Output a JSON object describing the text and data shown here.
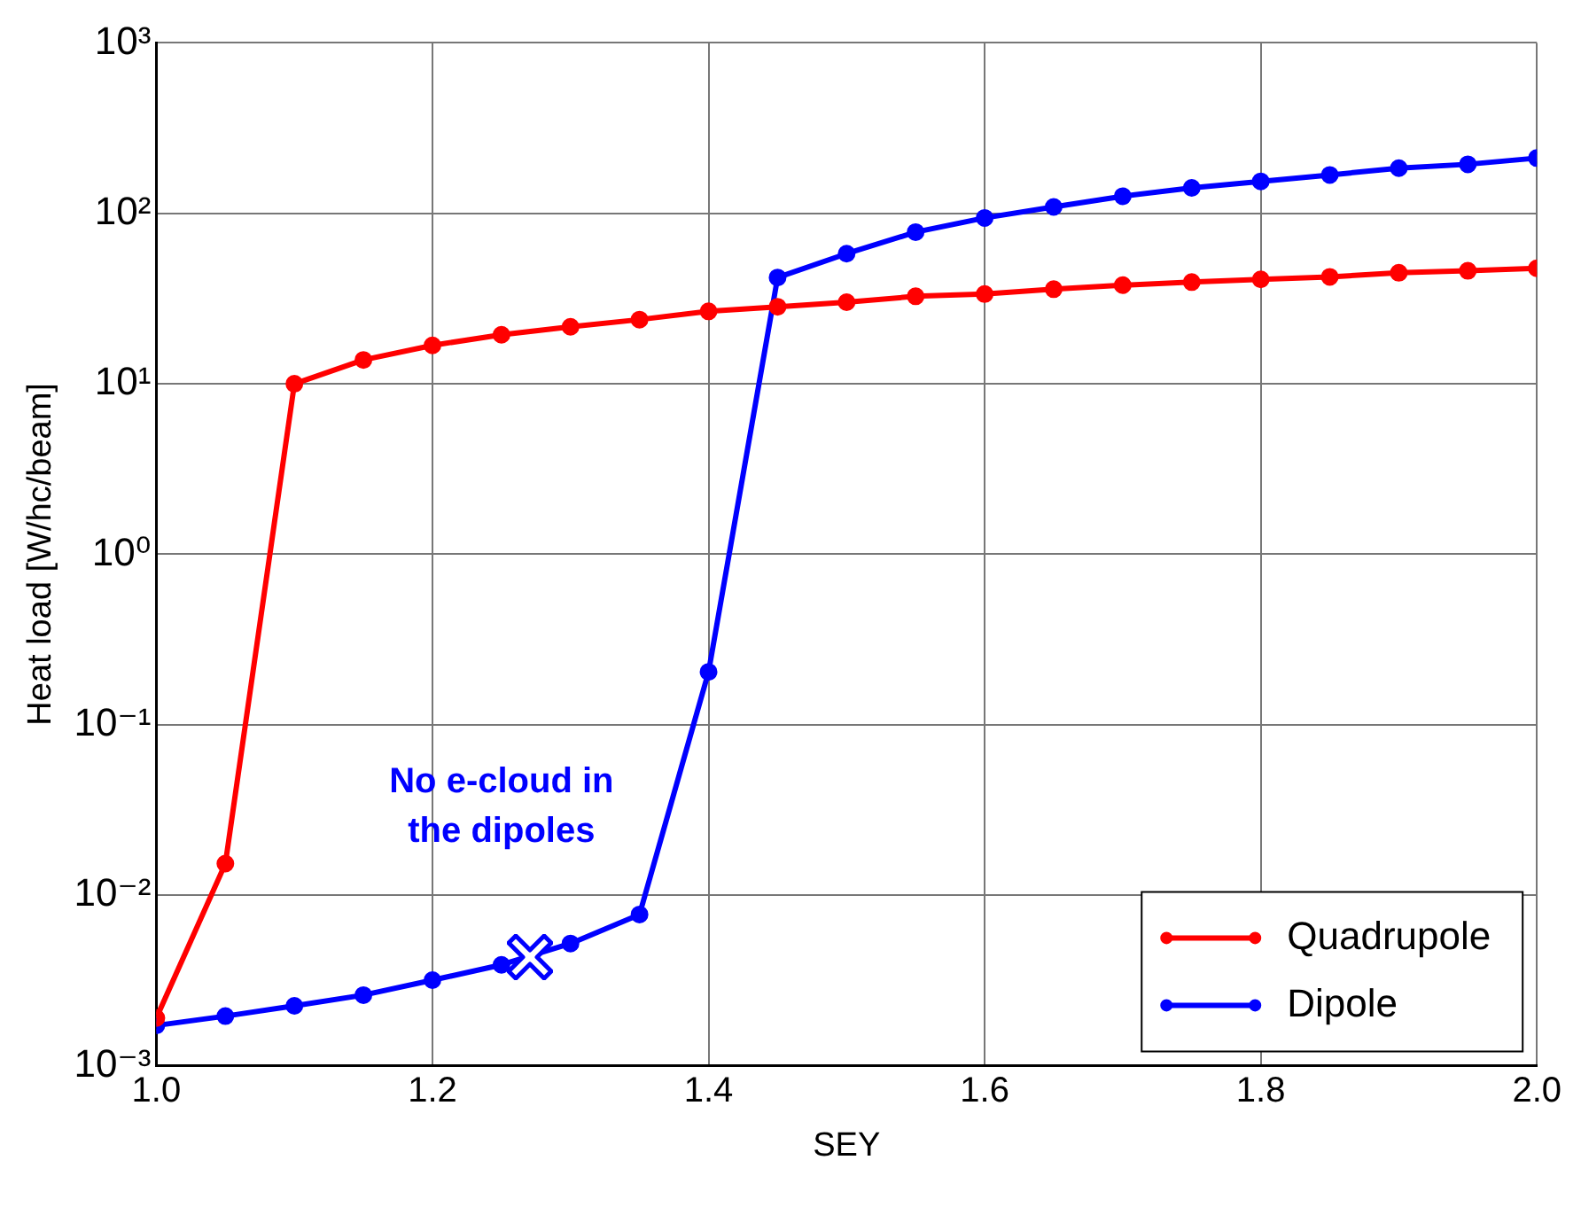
{
  "chart_data": {
    "type": "line",
    "xlabel": "SEY",
    "ylabel": "Heat load [W/hc/beam]",
    "x": [
      1.0,
      1.05,
      1.1,
      1.15,
      1.2,
      1.25,
      1.3,
      1.35,
      1.4,
      1.45,
      1.5,
      1.55,
      1.6,
      1.65,
      1.7,
      1.75,
      1.8,
      1.85,
      1.9,
      1.95,
      2.0
    ],
    "series": [
      {
        "name": "Quadrupole",
        "color": "#ff0000",
        "values": [
          0.0019,
          0.0153,
          10,
          13.8,
          16.8,
          19.4,
          21.6,
          23.8,
          26.6,
          28.3,
          30.1,
          32.6,
          33.6,
          35.9,
          37.9,
          39.5,
          41,
          42.4,
          44.8,
          46,
          47.6
        ]
      },
      {
        "name": "Dipole",
        "color": "#0000ff",
        "values": [
          0.00172,
          0.00195,
          0.00224,
          0.00259,
          0.00317,
          0.0039,
          0.0052,
          0.0077,
          0.204,
          42,
          58,
          77.6,
          94,
          109,
          126,
          141,
          154,
          168,
          184,
          194,
          211
        ]
      }
    ],
    "xlim": [
      1.0,
      2.0
    ],
    "xticks": [
      {
        "value": 1.0,
        "label": "1.0"
      },
      1.2,
      1.4,
      1.6,
      1.8,
      {
        "value": 2.0,
        "label": "2.0"
      }
    ],
    "ylim": [
      0.001,
      1000
    ],
    "yticks": [
      {
        "value": 0.001,
        "label": "10⁻³"
      },
      {
        "value": 0.01,
        "label": "10⁻²"
      },
      {
        "value": 0.1,
        "label": "10⁻¹"
      },
      {
        "value": 1,
        "label": "10⁰"
      },
      {
        "value": 10,
        "label": "10¹"
      },
      {
        "value": 100,
        "label": "10²"
      },
      {
        "value": 1000,
        "label": "10³"
      }
    ],
    "log": "y",
    "grid": true,
    "legend": "bottom right",
    "marker": "circle",
    "line_style": "solid",
    "annotations": [
      "No e-cloud in the dipoles"
    ]
  }
}
